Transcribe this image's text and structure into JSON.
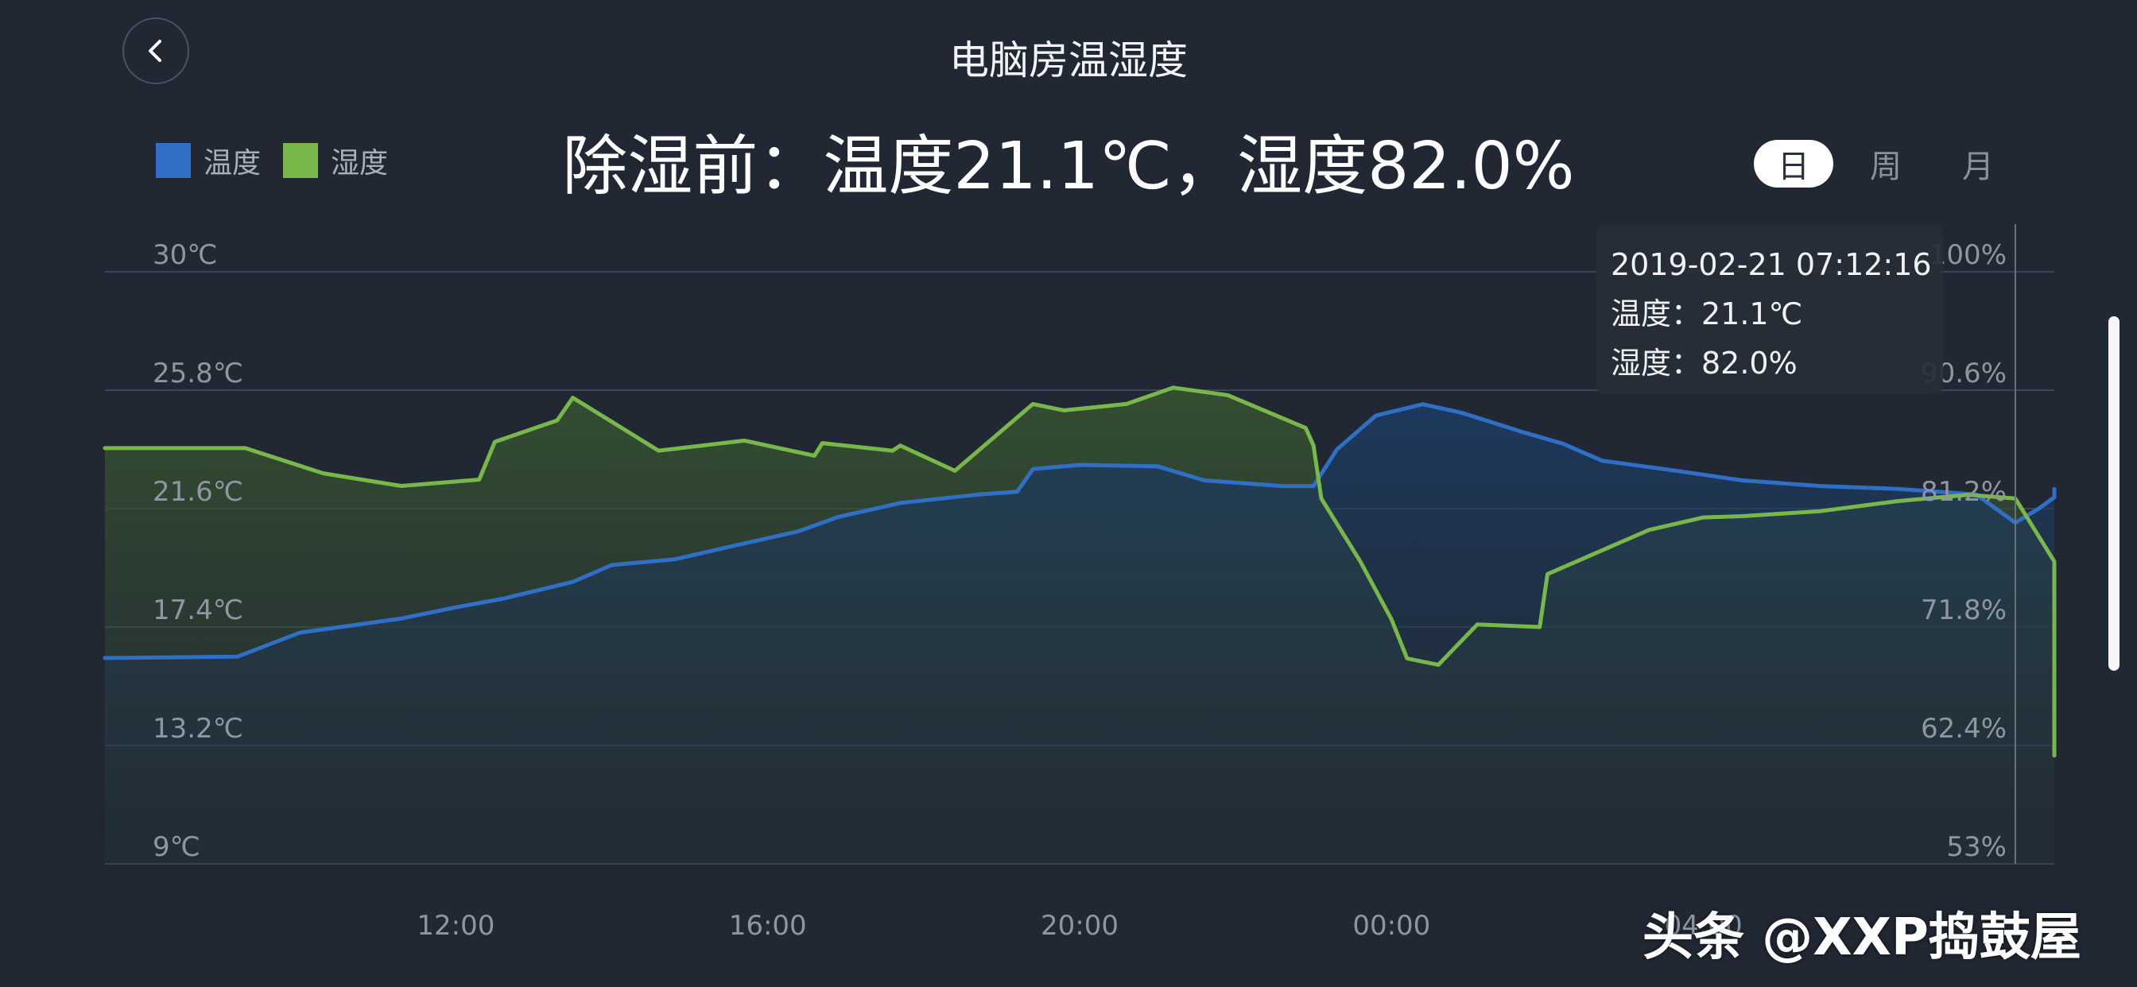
{
  "header": {
    "title": "电脑房温湿度",
    "headline": "除湿前：温度21.1℃，湿度82.0%"
  },
  "icons": {
    "back": "chevron-left-icon"
  },
  "colors": {
    "background": "#212833",
    "temperature": "#2f6fc6",
    "humidity": "#78b74a"
  },
  "range_tabs": [
    {
      "label": "日",
      "active": true
    },
    {
      "label": "周",
      "active": false
    },
    {
      "label": "月",
      "active": false
    }
  ],
  "tooltip": {
    "timestamp": "2019-02-21 07:12:16",
    "temperature": "温度：21.1℃",
    "humidity": "湿度：82.0%"
  },
  "watermark": "头条 @XXP捣鼓屋",
  "chart_data": {
    "type": "area",
    "grid": true,
    "legend": "top-left",
    "left_axis": {
      "ticks": [
        "30℃",
        "25.8℃",
        "21.6℃",
        "17.4℃",
        "13.2℃",
        "9℃"
      ],
      "range": [
        9,
        30
      ]
    },
    "right_axis": {
      "ticks": [
        "100%",
        "90.6%",
        "81.2%",
        "71.8%",
        "62.4%",
        "53%"
      ],
      "range": [
        53,
        100
      ]
    },
    "x_ticks": [
      "12:00",
      "16:00",
      "20:00",
      "00:00",
      "04:00"
    ],
    "x_range_hours": [
      7.5,
      32.5
    ],
    "series": [
      {
        "name": "温度",
        "axis": "left",
        "color": "#2f6fc6",
        "points": [
          [
            7.5,
            16.3
          ],
          [
            9.2,
            16.35
          ],
          [
            10.0,
            17.2
          ],
          [
            11.3,
            17.7
          ],
          [
            12.0,
            18.1
          ],
          [
            12.6,
            18.4
          ],
          [
            13.5,
            19.0
          ],
          [
            14.0,
            19.6
          ],
          [
            14.8,
            19.8
          ],
          [
            15.6,
            20.3
          ],
          [
            16.4,
            20.8
          ],
          [
            16.9,
            21.3
          ],
          [
            17.7,
            21.8
          ],
          [
            18.7,
            22.1
          ],
          [
            19.2,
            22.2
          ],
          [
            19.4,
            23.0
          ],
          [
            20.0,
            23.15
          ],
          [
            21.0,
            23.1
          ],
          [
            21.6,
            22.6
          ],
          [
            22.6,
            22.4
          ],
          [
            23.0,
            22.4
          ],
          [
            23.3,
            23.7
          ],
          [
            23.8,
            24.9
          ],
          [
            24.4,
            25.3
          ],
          [
            24.9,
            25.0
          ],
          [
            25.7,
            24.3
          ],
          [
            26.2,
            23.9
          ],
          [
            26.7,
            23.3
          ],
          [
            27.5,
            23.0
          ],
          [
            28.5,
            22.6
          ],
          [
            29.5,
            22.4
          ],
          [
            30.5,
            22.3
          ],
          [
            31.5,
            22.1
          ],
          [
            32.0,
            21.1
          ],
          [
            32.3,
            21.6
          ],
          [
            32.8,
            22.0
          ],
          [
            33.4,
            22.3
          ],
          [
            33.7,
            22.2
          ]
        ]
      },
      {
        "name": "湿度",
        "axis": "right",
        "color": "#78b74a",
        "points": [
          [
            7.5,
            86.0
          ],
          [
            9.3,
            86.0
          ],
          [
            10.3,
            84.0
          ],
          [
            11.3,
            83.0
          ],
          [
            12.3,
            83.5
          ],
          [
            12.5,
            86.5
          ],
          [
            13.3,
            88.2
          ],
          [
            13.5,
            90.0
          ],
          [
            14.6,
            85.8
          ],
          [
            15.7,
            86.6
          ],
          [
            16.6,
            85.4
          ],
          [
            16.7,
            86.4
          ],
          [
            17.6,
            85.8
          ],
          [
            17.7,
            86.2
          ],
          [
            18.4,
            84.2
          ],
          [
            19.4,
            89.5
          ],
          [
            19.8,
            89.0
          ],
          [
            20.6,
            89.5
          ],
          [
            21.2,
            90.8
          ],
          [
            21.9,
            90.2
          ],
          [
            22.9,
            87.6
          ],
          [
            23.0,
            86.2
          ],
          [
            23.1,
            82.0
          ],
          [
            23.6,
            77.0
          ],
          [
            24.0,
            72.4
          ],
          [
            24.2,
            69.3
          ],
          [
            24.6,
            68.8
          ],
          [
            25.1,
            72.0
          ],
          [
            25.9,
            71.8
          ],
          [
            26.0,
            76.0
          ],
          [
            27.3,
            79.5
          ],
          [
            28.0,
            80.5
          ],
          [
            28.5,
            80.6
          ],
          [
            29.5,
            81.0
          ],
          [
            30.5,
            81.8
          ],
          [
            31.4,
            82.3
          ],
          [
            32.0,
            82.0
          ],
          [
            32.6,
            77.0
          ],
          [
            32.8,
            76.5
          ],
          [
            32.9,
            72.0
          ],
          [
            33.3,
            65.0
          ],
          [
            33.5,
            61.6
          ],
          [
            33.7,
            63.5
          ],
          [
            33.9,
            68.5
          ]
        ]
      }
    ]
  }
}
